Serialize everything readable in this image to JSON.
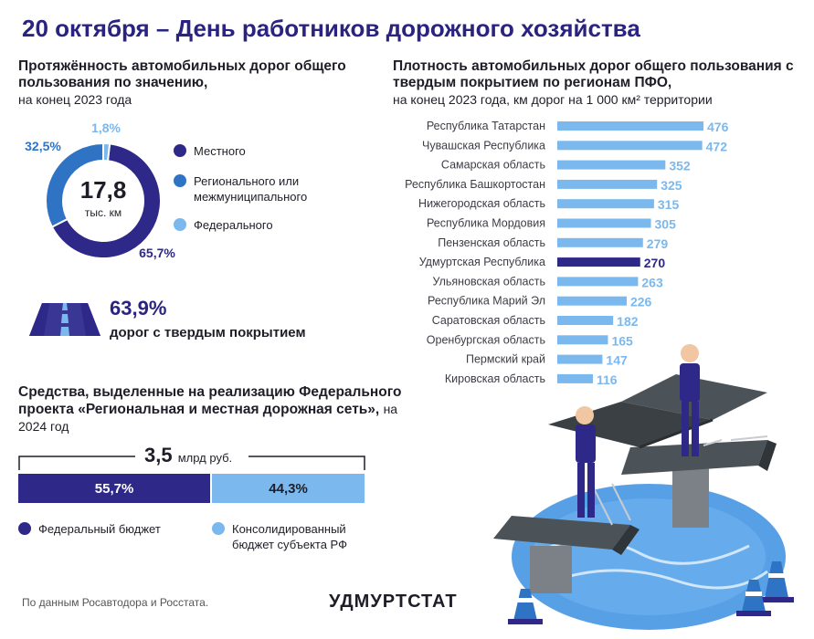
{
  "main_title": "20 октября – День работников дорожного хозяйства",
  "left": {
    "title": "Протяжённость автомобильных дорог общего пользования по значению,",
    "subtitle": "на конец 2023 года",
    "donut_total": "17,8",
    "donut_unit": "тыс. км",
    "slice_labels": [
      "65,7%",
      "32,5%",
      "1,8%"
    ],
    "legend": [
      "Местного",
      "Регионального или межмуниципального",
      "Федерального"
    ],
    "colors": [
      "#2e2888",
      "#2f73c4",
      "#7ab8ee"
    ]
  },
  "paved": {
    "percent": "63,9%",
    "label": "дорог с твердым покрытием"
  },
  "funds": {
    "title": "Средства, выделенные на реализацию Федерального проекта «Региональная и местная дорожная сеть»,",
    "subtitle": "на 2024 год",
    "total": "3,5",
    "total_unit": "млрд руб.",
    "federal_pct": "55,7%",
    "regional_pct": "44,3%",
    "federal_label": "Федеральный бюджет",
    "regional_label": "Консолидированный бюджет субъекта РФ"
  },
  "right": {
    "title": "Плотность автомобильных дорог общего пользования с твердым покрытием по регионам ПФО,",
    "subtitle": "на конец 2023 года, км дорог на 1 000 км² территории"
  },
  "source": "По данным Росавтодора и Росстата.",
  "brand": "УДМУРТСТАТ",
  "chart_data": [
    {
      "type": "pie",
      "categories": [
        "Местного",
        "Регионального или межмуниципального",
        "Федерального"
      ],
      "values": [
        65.7,
        32.5,
        1.8
      ]
    },
    {
      "type": "bar",
      "categories": [
        "Республика Татарстан",
        "Чувашская Республика",
        "Самарская область",
        "Республика Башкортостан",
        "Нижегородская область",
        "Республика Мордовия",
        "Пензенская область",
        "Удмуртская Республика",
        "Ульяновская область",
        "Республика Марий Эл",
        "Саратовская область",
        "Оренбургская область",
        "Пермский край",
        "Кировская область"
      ],
      "values": [
        476,
        472,
        352,
        325,
        315,
        305,
        279,
        270,
        263,
        226,
        182,
        165,
        147,
        116
      ],
      "highlight": "Удмуртская Республика",
      "bar_color": "#7ab8ee",
      "highlight_color": "#2e2888",
      "orientation": "horizontal"
    },
    {
      "type": "bar",
      "categories": [
        "Федеральный бюджет",
        "Консолидированный бюджет субъекта РФ"
      ],
      "values": [
        55.7,
        44.3
      ],
      "stacked": true
    }
  ]
}
